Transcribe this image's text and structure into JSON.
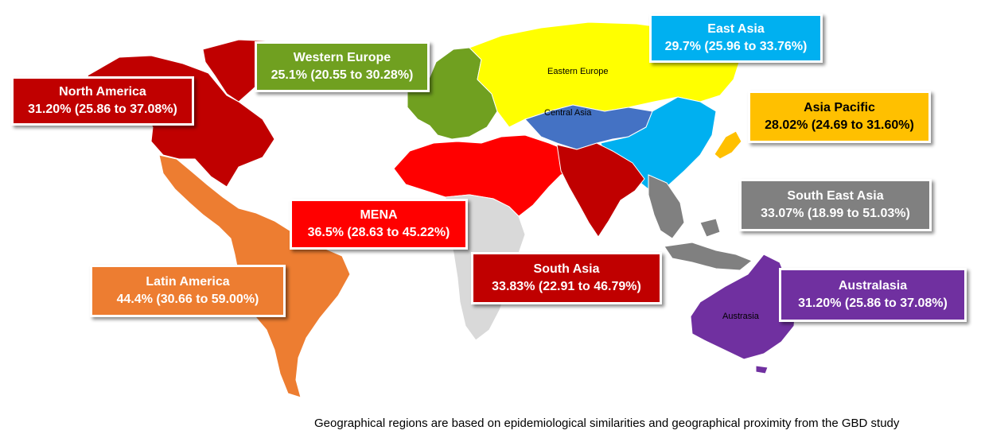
{
  "colors": {
    "north_america": "#C00000",
    "western_europe": "#70A020",
    "eastern_europe": "#FFFF00",
    "central_asia": "#4472C4",
    "east_asia": "#00B0F0",
    "asia_pacific": "#FFC000",
    "south_east_asia": "#808080",
    "south_asia": "#C00000",
    "mena": "#FF0000",
    "latin_america": "#ED7D31",
    "australasia": "#7030A0",
    "sub_saharan_africa": "#D9D9D9"
  },
  "regions": {
    "north_america": {
      "title": "North America",
      "value": "31.20% (25.86 to 37.08%)"
    },
    "western_europe": {
      "title": "Western Europe",
      "value": "25.1% (20.55 to 30.28%)"
    },
    "east_asia": {
      "title": "East Asia",
      "value": "29.7% (25.96 to 33.76%)"
    },
    "asia_pacific": {
      "title": "Asia Pacific",
      "value": "28.02% (24.69 to 31.60%)"
    },
    "south_east_asia": {
      "title": "South East Asia",
      "value": "33.07% (18.99 to 51.03%)"
    },
    "mena": {
      "title": "MENA",
      "value": "36.5% (28.63 to 45.22%)"
    },
    "south_asia": {
      "title": "South Asia",
      "value": "33.83% (22.91 to 46.79%)"
    },
    "latin_america": {
      "title": "Latin America",
      "value": "44.4% (30.66 to 59.00%)"
    },
    "australasia": {
      "title": "Australasia",
      "value": "31.20% (25.86 to 37.08%)"
    }
  },
  "map_labels": {
    "eastern_europe": "Eastern Europe",
    "central_asia": "Central Asia",
    "austrasia": "Austrasia"
  },
  "footnote": "Geographical regions are based on epidemiological similarities and geographical proximity from the GBD study"
}
